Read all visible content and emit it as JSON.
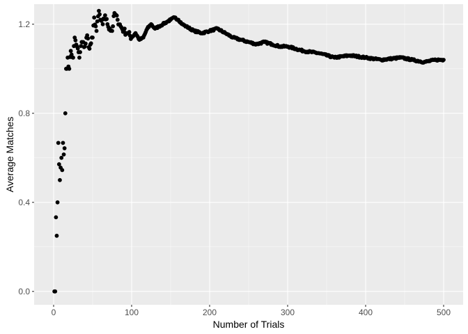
{
  "colors": {
    "panel_background": "#ebebeb",
    "grid_major": "#ffffff",
    "point": "#000000",
    "tick_label": "#4d4d4d"
  },
  "chart_data": {
    "type": "scatter",
    "xlabel": "Number of Trials",
    "ylabel": "Average Matches",
    "xlim": [
      -25,
      525
    ],
    "ylim": [
      -0.06,
      1.29
    ],
    "x_ticks": [
      0,
      100,
      200,
      300,
      400,
      500
    ],
    "y_ticks": [
      0.0,
      0.4,
      0.8,
      1.2
    ],
    "x_tick_labels": [
      "0",
      "100",
      "200",
      "300",
      "400",
      "500"
    ],
    "y_tick_labels": [
      "0.0",
      "0.4",
      "0.8",
      "1.2"
    ],
    "grid": true,
    "legend": "none",
    "anchors": [
      [
        1,
        0.0
      ],
      [
        2,
        0.0
      ],
      [
        3,
        0.333
      ],
      [
        4,
        0.25
      ],
      [
        5,
        0.4
      ],
      [
        6,
        0.667
      ],
      [
        7,
        0.571
      ],
      [
        8,
        0.5
      ],
      [
        9,
        0.556
      ],
      [
        10,
        0.6
      ],
      [
        11,
        0.545
      ],
      [
        12,
        0.667
      ],
      [
        13,
        0.615
      ],
      [
        14,
        0.643
      ],
      [
        15,
        0.8
      ],
      [
        16,
        1.0
      ],
      [
        17,
        1.0
      ],
      [
        18,
        1.05
      ],
      [
        20,
        1.0
      ],
      [
        22,
        1.08
      ],
      [
        25,
        1.05
      ],
      [
        27,
        1.14
      ],
      [
        30,
        1.1
      ],
      [
        33,
        1.05
      ],
      [
        36,
        1.12
      ],
      [
        40,
        1.1
      ],
      [
        43,
        1.15
      ],
      [
        46,
        1.09
      ],
      [
        50,
        1.14
      ],
      [
        52,
        1.23
      ],
      [
        55,
        1.17
      ],
      [
        58,
        1.26
      ],
      [
        60,
        1.22
      ],
      [
        63,
        1.2
      ],
      [
        66,
        1.24
      ],
      [
        69,
        1.2
      ],
      [
        72,
        1.18
      ],
      [
        75,
        1.17
      ],
      [
        78,
        1.25
      ],
      [
        82,
        1.22
      ],
      [
        86,
        1.19
      ],
      [
        90,
        1.17
      ],
      [
        95,
        1.16
      ],
      [
        100,
        1.14
      ],
      [
        105,
        1.16
      ],
      [
        110,
        1.13
      ],
      [
        115,
        1.14
      ],
      [
        120,
        1.18
      ],
      [
        125,
        1.2
      ],
      [
        130,
        1.18
      ],
      [
        135,
        1.19
      ],
      [
        140,
        1.2
      ],
      [
        145,
        1.21
      ],
      [
        150,
        1.22
      ],
      [
        155,
        1.23
      ],
      [
        160,
        1.22
      ],
      [
        165,
        1.2
      ],
      [
        170,
        1.19
      ],
      [
        180,
        1.17
      ],
      [
        190,
        1.16
      ],
      [
        200,
        1.17
      ],
      [
        210,
        1.18
      ],
      [
        220,
        1.16
      ],
      [
        230,
        1.14
      ],
      [
        240,
        1.13
      ],
      [
        250,
        1.12
      ],
      [
        260,
        1.11
      ],
      [
        270,
        1.12
      ],
      [
        280,
        1.11
      ],
      [
        290,
        1.1
      ],
      [
        300,
        1.1
      ],
      [
        320,
        1.08
      ],
      [
        340,
        1.07
      ],
      [
        360,
        1.05
      ],
      [
        380,
        1.06
      ],
      [
        400,
        1.05
      ],
      [
        420,
        1.04
      ],
      [
        445,
        1.05
      ],
      [
        460,
        1.04
      ],
      [
        475,
        1.03
      ],
      [
        490,
        1.04
      ],
      [
        500,
        1.04
      ]
    ]
  }
}
